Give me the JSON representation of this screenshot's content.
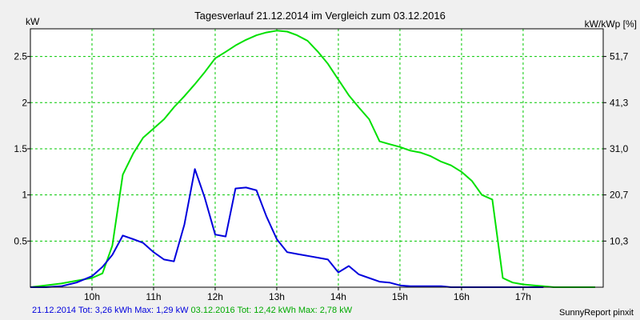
{
  "chart_data": {
    "type": "line",
    "title": "Tagesverlauf 21.12.2014 im Vergleich zum 03.12.2016",
    "ylabel_left": "kW",
    "ylabel_right": "kW/kWp [%]",
    "x_unit": "hour",
    "xlim": [
      9.0,
      18.3
    ],
    "ylim": [
      0,
      2.8
    ],
    "xticks": [
      {
        "x": 10,
        "label": "10h"
      },
      {
        "x": 11,
        "label": "11h"
      },
      {
        "x": 12,
        "label": "12h"
      },
      {
        "x": 13,
        "label": "13h"
      },
      {
        "x": 14,
        "label": "14h"
      },
      {
        "x": 15,
        "label": "15h"
      },
      {
        "x": 16,
        "label": "16h"
      },
      {
        "x": 17,
        "label": "17h"
      }
    ],
    "yticks_left": [
      {
        "y": 0.5,
        "label": "0.5"
      },
      {
        "y": 1,
        "label": "1"
      },
      {
        "y": 1.5,
        "label": "1.5"
      },
      {
        "y": 2,
        "label": "2"
      },
      {
        "y": 2.5,
        "label": "2.5"
      }
    ],
    "yticks_right": [
      {
        "y": 0.5,
        "label": "10,3"
      },
      {
        "y": 1,
        "label": "20,7"
      },
      {
        "y": 1.5,
        "label": "31,0"
      },
      {
        "y": 2,
        "label": "41,3"
      },
      {
        "y": 2.5,
        "label": "51,7"
      }
    ],
    "grid": true,
    "series": [
      {
        "color": "#00e000",
        "x": [
          9.0,
          9.25,
          9.5,
          9.75,
          10.0,
          10.17,
          10.33,
          10.5,
          10.67,
          10.83,
          11.0,
          11.17,
          11.33,
          11.5,
          11.67,
          11.83,
          12.0,
          12.17,
          12.33,
          12.5,
          12.67,
          12.83,
          13.0,
          13.17,
          13.33,
          13.5,
          13.67,
          13.83,
          14.0,
          14.17,
          14.33,
          14.5,
          14.67,
          14.83,
          15.0,
          15.17,
          15.33,
          15.5,
          15.67,
          15.83,
          16.0,
          16.17,
          16.33,
          16.5,
          16.67,
          16.83,
          17.0,
          17.17,
          17.33,
          17.5,
          17.67,
          17.83,
          18.0,
          18.17
        ],
        "y": [
          0.0,
          0.02,
          0.04,
          0.07,
          0.1,
          0.15,
          0.45,
          1.22,
          1.45,
          1.62,
          1.72,
          1.82,
          1.95,
          2.07,
          2.2,
          2.33,
          2.48,
          2.55,
          2.62,
          2.68,
          2.73,
          2.76,
          2.78,
          2.77,
          2.73,
          2.67,
          2.55,
          2.42,
          2.25,
          2.08,
          1.95,
          1.82,
          1.58,
          1.55,
          1.52,
          1.48,
          1.46,
          1.42,
          1.36,
          1.32,
          1.25,
          1.15,
          1.0,
          0.95,
          0.1,
          0.05,
          0.03,
          0.02,
          0.01,
          0.0,
          0.0,
          0.0,
          0.0,
          0.0
        ]
      },
      {
        "color": "#0000dd",
        "x": [
          9.0,
          9.25,
          9.5,
          9.75,
          10.0,
          10.17,
          10.33,
          10.5,
          10.67,
          10.83,
          11.0,
          11.17,
          11.33,
          11.5,
          11.67,
          11.83,
          12.0,
          12.17,
          12.33,
          12.5,
          12.67,
          12.83,
          13.0,
          13.17,
          13.33,
          13.5,
          13.67,
          13.83,
          14.0,
          14.17,
          14.33,
          14.5,
          14.67,
          14.83,
          15.0,
          15.17,
          15.33,
          15.5,
          15.67,
          15.83,
          16.0,
          16.17,
          16.33,
          16.5,
          16.67,
          16.83,
          17.0,
          17.17,
          17.33
        ],
        "y": [
          0.0,
          0.0,
          0.01,
          0.05,
          0.12,
          0.22,
          0.35,
          0.56,
          0.52,
          0.48,
          0.38,
          0.3,
          0.28,
          0.68,
          1.28,
          0.97,
          0.57,
          0.55,
          1.07,
          1.08,
          1.05,
          0.77,
          0.52,
          0.38,
          0.36,
          0.34,
          0.32,
          0.3,
          0.16,
          0.23,
          0.14,
          0.1,
          0.06,
          0.05,
          0.02,
          0.01,
          0.01,
          0.01,
          0.01,
          0.0,
          0.0,
          0.0,
          0.0,
          0.0,
          0.0,
          0.0,
          0.0,
          0.0,
          0.0
        ]
      }
    ]
  },
  "footer": {
    "blue_text": "21.12.2014 Tot: 3,26 kWh Max: 1,29 kW",
    "green_text": "03.12.2016 Tot: 12,42 kWh Max: 2,78 kW",
    "blue_color": "#0000dd",
    "green_color": "#00aa00"
  },
  "credit": "SunnyReport pinxit"
}
